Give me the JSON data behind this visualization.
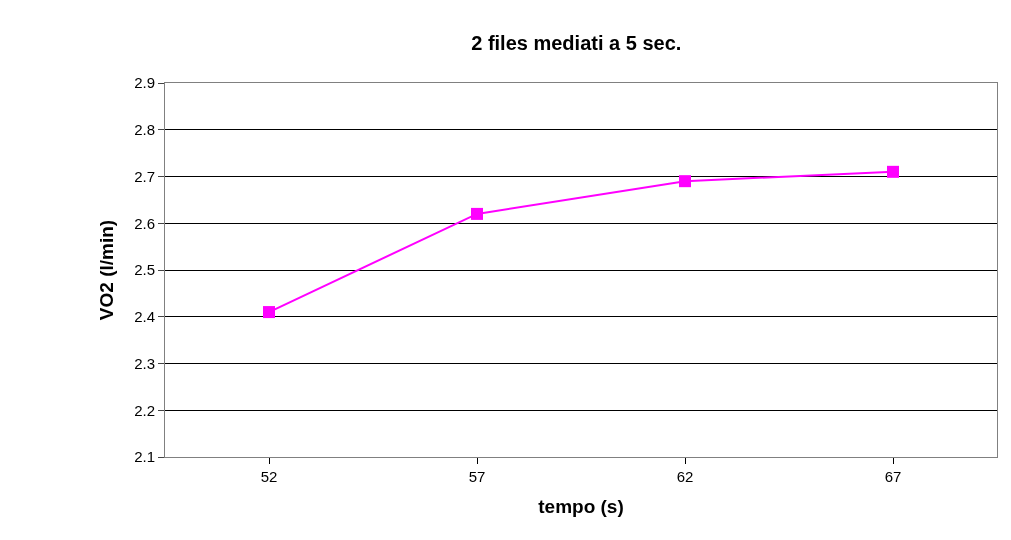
{
  "chart_data": {
    "type": "line",
    "title": "2 files mediati a 5 sec.",
    "xlabel": "tempo (s)",
    "ylabel": "VO2 (l/min)",
    "categories": [
      "52",
      "57",
      "62",
      "67"
    ],
    "series": [
      {
        "color": "#ff00ff",
        "values": [
          2.41,
          2.62,
          2.69,
          2.71
        ]
      }
    ],
    "ylim": [
      2.1,
      2.9
    ],
    "yticks": [
      2.1,
      2.2,
      2.3,
      2.4,
      2.5,
      2.6,
      2.7,
      2.8,
      2.9
    ],
    "grid": "y",
    "legend": false,
    "marker": "square",
    "line_style": "solid"
  }
}
